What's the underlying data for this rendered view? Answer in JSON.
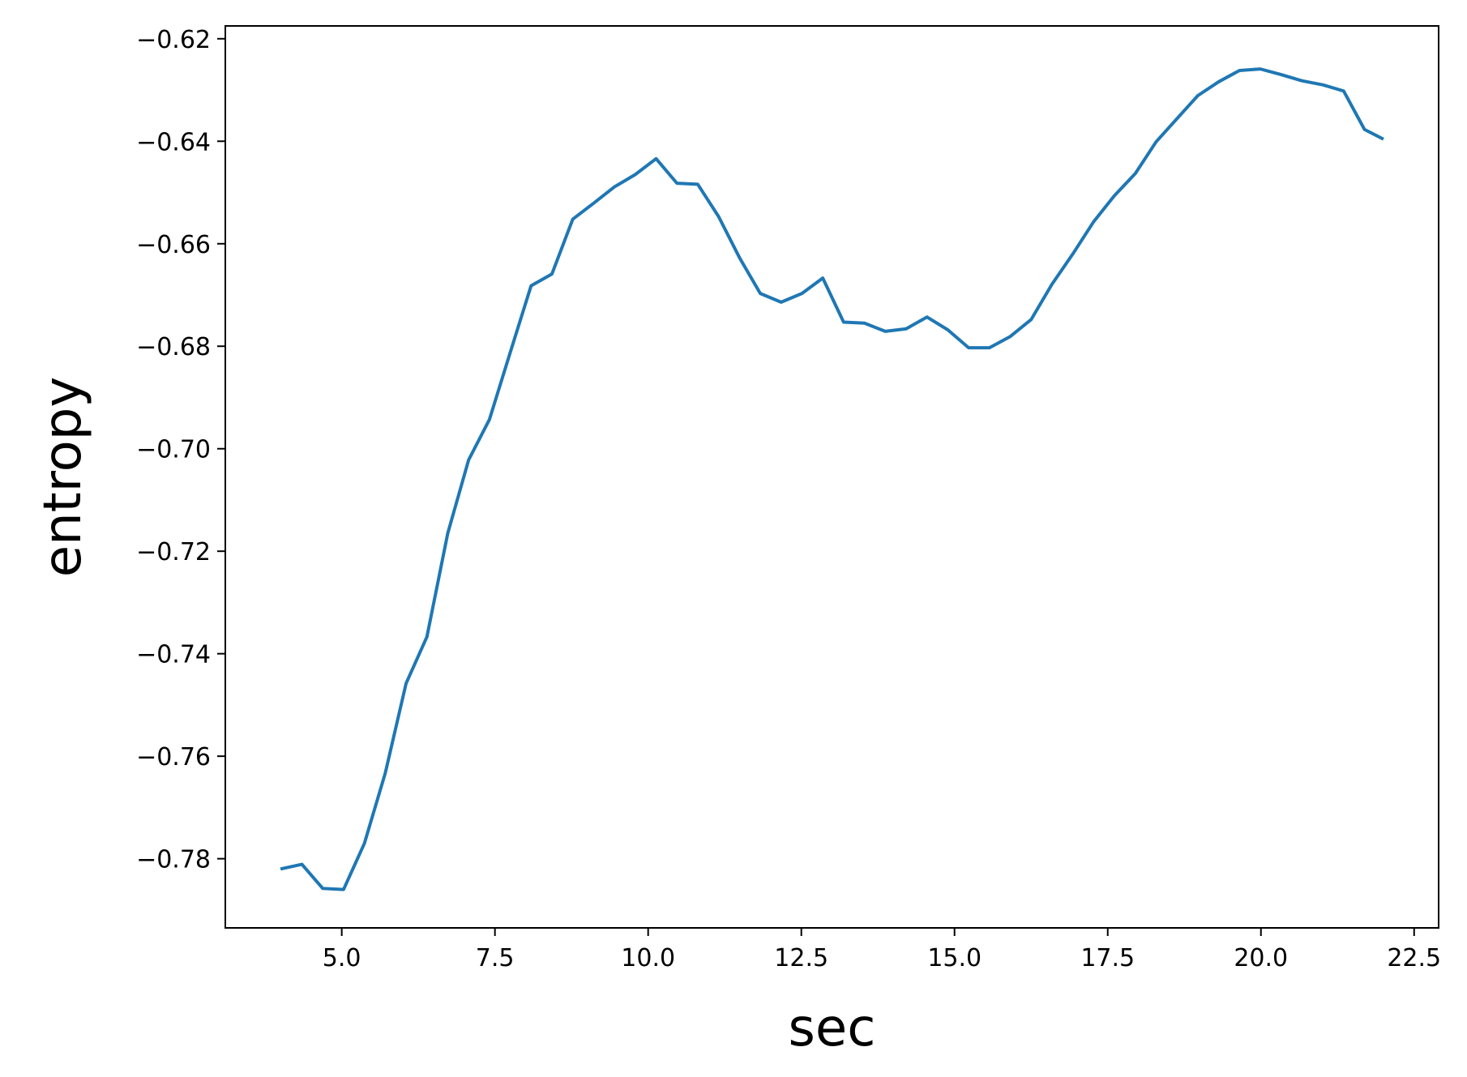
{
  "chart_data": {
    "type": "line",
    "title": "",
    "xlabel": "sec",
    "ylabel": "entropy",
    "xlim": [
      3.1,
      22.9
    ],
    "ylim": [
      -0.7935,
      -0.6175
    ],
    "grid": false,
    "xticks": [
      5.0,
      7.5,
      10.0,
      12.5,
      15.0,
      17.5,
      20.0,
      22.5
    ],
    "xtick_labels": [
      "5.0",
      "7.5",
      "10.0",
      "12.5",
      "15.0",
      "17.5",
      "20.0",
      "22.5"
    ],
    "yticks": [
      -0.62,
      -0.64,
      -0.66,
      -0.68,
      -0.7,
      -0.72,
      -0.74,
      -0.76,
      -0.78
    ],
    "ytick_labels": [
      "−0.62",
      "−0.64",
      "−0.66",
      "−0.68",
      "−0.70",
      "−0.72",
      "−0.74",
      "−0.76",
      "−0.78"
    ],
    "series": [
      {
        "name": "entropy",
        "color": "#1f77b4",
        "x": [
          4.0,
          4.35,
          4.69,
          5.03,
          5.37,
          5.71,
          6.05,
          6.39,
          6.73,
          7.07,
          7.41,
          7.75,
          8.09,
          8.43,
          8.77,
          9.11,
          9.45,
          9.79,
          10.13,
          10.47,
          10.81,
          11.15,
          11.49,
          11.83,
          12.17,
          12.51,
          12.85,
          13.19,
          13.53,
          13.87,
          14.21,
          14.55,
          14.89,
          15.23,
          15.57,
          15.91,
          16.25,
          16.59,
          16.93,
          17.27,
          17.61,
          17.95,
          18.29,
          18.63,
          18.97,
          19.31,
          19.65,
          19.99,
          20.33,
          20.67,
          21.01,
          21.35,
          21.69,
          22.0
        ],
        "y": [
          -0.782,
          -0.7811,
          -0.7858,
          -0.786,
          -0.777,
          -0.7633,
          -0.7458,
          -0.7367,
          -0.7165,
          -0.7022,
          -0.6943,
          -0.6812,
          -0.6682,
          -0.6659,
          -0.6552,
          -0.6521,
          -0.6489,
          -0.6465,
          -0.6434,
          -0.6482,
          -0.6484,
          -0.6547,
          -0.6627,
          -0.6697,
          -0.6714,
          -0.6697,
          -0.6667,
          -0.6753,
          -0.6755,
          -0.6771,
          -0.6766,
          -0.6743,
          -0.6768,
          -0.6803,
          -0.6803,
          -0.6781,
          -0.6748,
          -0.6679,
          -0.662,
          -0.6557,
          -0.6506,
          -0.6463,
          -0.6401,
          -0.6356,
          -0.6311,
          -0.6284,
          -0.6262,
          -0.6259,
          -0.627,
          -0.6282,
          -0.629,
          -0.6302,
          -0.6377,
          -0.6396
        ]
      }
    ]
  }
}
